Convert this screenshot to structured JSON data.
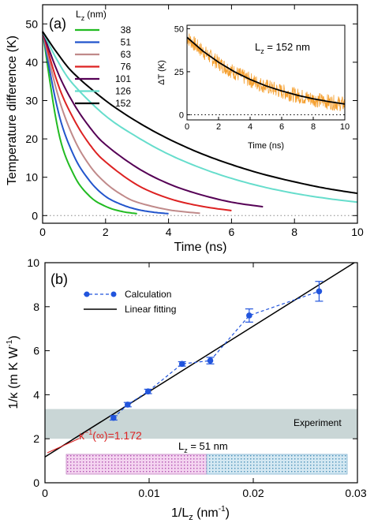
{
  "chart_data": [
    {
      "type": "line",
      "panel_label": "(a)",
      "xlabel": "Time (ns)",
      "ylabel": "Temperature difference (K)",
      "xlim": [
        0,
        10
      ],
      "ylim": [
        -2,
        55
      ],
      "xticks": [
        0,
        2,
        4,
        6,
        8,
        10
      ],
      "yticks": [
        0,
        10,
        20,
        30,
        40,
        50
      ],
      "legend_title": "L₂ (nm)",
      "legend_title_main": "L",
      "legend_title_sub": "z",
      "legend_title_unit": "(nm)",
      "legend_position": "top-center",
      "reference_line": {
        "y": 0,
        "style": "dotted"
      },
      "series": [
        {
          "name": "38",
          "color": "#22bb22",
          "x_end": 3.0,
          "points": [
            [
              0,
              48
            ],
            [
              0.5,
              22
            ],
            [
              1,
              10.5
            ],
            [
              1.5,
              5
            ],
            [
              2,
              2.4
            ],
            [
              2.5,
              1.1
            ],
            [
              3,
              0.5
            ]
          ]
        },
        {
          "name": "51",
          "color": "#2255cc",
          "x_end": 4.0,
          "points": [
            [
              0,
              48
            ],
            [
              0.5,
              27
            ],
            [
              1,
              15.5
            ],
            [
              1.5,
              9
            ],
            [
              2,
              5
            ],
            [
              2.5,
              2.9
            ],
            [
              3,
              1.6
            ],
            [
              3.5,
              0.9
            ],
            [
              4,
              0.5
            ]
          ]
        },
        {
          "name": "63",
          "color": "#c08a8a",
          "x_end": 5.0,
          "points": [
            [
              0,
              48
            ],
            [
              0.5,
              31
            ],
            [
              1,
              20
            ],
            [
              1.5,
              13
            ],
            [
              2,
              8.5
            ],
            [
              2.5,
              5.5
            ],
            [
              3,
              3.5
            ],
            [
              4,
              1.5
            ],
            [
              5,
              0.6
            ]
          ]
        },
        {
          "name": "76",
          "color": "#dd2222",
          "x_end": 6.0,
          "points": [
            [
              0,
              48
            ],
            [
              0.5,
              34
            ],
            [
              1,
              25
            ],
            [
              1.5,
              18.5
            ],
            [
              2,
              14
            ],
            [
              3,
              8
            ],
            [
              4,
              4.5
            ],
            [
              5,
              2.5
            ],
            [
              6,
              1.3
            ]
          ]
        },
        {
          "name": "101",
          "color": "#550055",
          "x_end": 7.0,
          "points": [
            [
              0,
              48
            ],
            [
              0.5,
              37
            ],
            [
              1,
              29
            ],
            [
              1.5,
              23
            ],
            [
              2,
              18.5
            ],
            [
              3,
              12.5
            ],
            [
              4,
              8.3
            ],
            [
              5,
              5.5
            ],
            [
              6,
              3.5
            ],
            [
              7,
              2.3
            ]
          ]
        },
        {
          "name": "126",
          "color": "#66ddcc",
          "x_end": 10.0,
          "points": [
            [
              0,
              48
            ],
            [
              0.5,
              40
            ],
            [
              1,
              34
            ],
            [
              2,
              26
            ],
            [
              3,
              20.5
            ],
            [
              4,
              16
            ],
            [
              5,
              12.5
            ],
            [
              6,
              9.7
            ],
            [
              7,
              7.5
            ],
            [
              8,
              5.8
            ],
            [
              9,
              4.5
            ],
            [
              10,
              3.5
            ]
          ]
        },
        {
          "name": "152",
          "color": "#000000",
          "x_end": 10.0,
          "points": [
            [
              0,
              48
            ],
            [
              0.5,
              42
            ],
            [
              1,
              37
            ],
            [
              2,
              30
            ],
            [
              3,
              24.5
            ],
            [
              4,
              20
            ],
            [
              5,
              16.3
            ],
            [
              6,
              13.3
            ],
            [
              7,
              10.8
            ],
            [
              8,
              8.8
            ],
            [
              9,
              7.1
            ],
            [
              10,
              5.8
            ]
          ]
        }
      ],
      "inset": {
        "xlabel": "Time (ns)",
        "ylabel": "ΔT (K)",
        "xlim": [
          0,
          10
        ],
        "ylim": [
          -3,
          52
        ],
        "xticks": [
          0,
          2,
          4,
          6,
          8,
          10
        ],
        "yticks": [
          0,
          25,
          50
        ],
        "annotation_main": "L",
        "annotation_sub": "z",
        "annotation_rest": " = 152 nm",
        "noisy_color": "#f5a030",
        "fit_color": "#000000",
        "fit_points": [
          [
            0,
            45
          ],
          [
            1,
            37
          ],
          [
            2,
            30.5
          ],
          [
            3,
            25
          ],
          [
            4,
            20.5
          ],
          [
            5,
            16.8
          ],
          [
            6,
            13.8
          ],
          [
            7,
            11.3
          ],
          [
            8,
            9.3
          ],
          [
            9,
            7.6
          ],
          [
            10,
            6.2
          ]
        ]
      }
    },
    {
      "type": "scatter",
      "panel_label": "(b)",
      "xlabel_main": "1/L",
      "xlabel_sub": "z",
      "xlabel_unit": " (nm",
      "xlabel_sup": "-1",
      "xlabel_close": ")",
      "ylabel_main": "1/κ (m K W",
      "ylabel_sup": "-1",
      "ylabel_close": ")",
      "xlim": [
        0,
        0.03
      ],
      "ylim": [
        0,
        10
      ],
      "xticks": [
        0,
        0.01,
        0.02,
        0.03
      ],
      "xtick_labels": [
        "0",
        "0.01",
        "0.02",
        "0.03"
      ],
      "yticks": [
        0,
        2,
        4,
        6,
        8,
        10
      ],
      "legend": [
        {
          "name": "Calculation",
          "style": "marker-dashed",
          "color": "#2255dd"
        },
        {
          "name": "Linear fitting",
          "style": "solid",
          "color": "#000000"
        }
      ],
      "legend_position": "top-left",
      "calculation": {
        "color": "#2255dd",
        "x": [
          0.00658,
          0.00794,
          0.0099,
          0.01316,
          0.01587,
          0.01961,
          0.02632
        ],
        "y": [
          2.95,
          3.55,
          4.15,
          5.4,
          5.55,
          7.6,
          8.7
        ],
        "err": [
          0.1,
          0.1,
          0.1,
          0.1,
          0.15,
          0.3,
          0.45
        ]
      },
      "fit": {
        "intercept": 1.172,
        "slope": 333,
        "x_range": [
          0,
          0.0297
        ]
      },
      "experiment_band": {
        "label": "Experiment",
        "y_range": [
          2.0,
          3.35
        ],
        "color": "#c9d6d6"
      },
      "annotation_kappa": "κ",
      "annotation_sup": "−1",
      "annotation_rest": "(∞)=1.172",
      "annotation_color": "#dd2222",
      "lz_main": "L",
      "lz_sub": "z",
      "lz_rest": " = 51 nm",
      "structure_colors": {
        "left": "#cc66cc",
        "right": "#66aacc"
      }
    }
  ]
}
